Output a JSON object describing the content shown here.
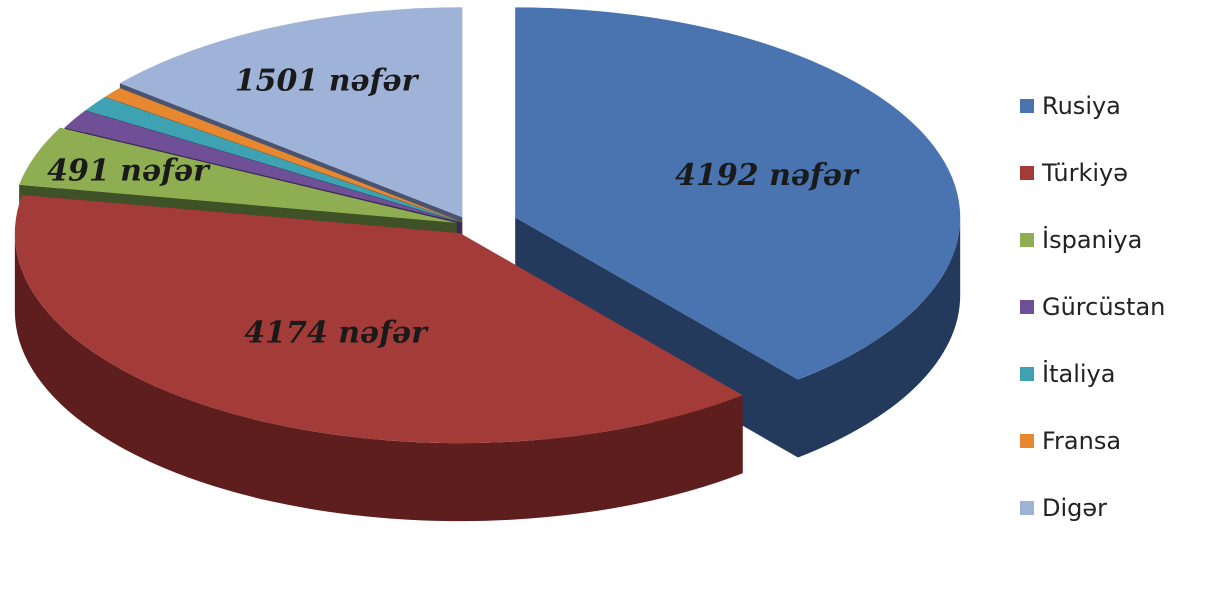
{
  "chart_data": {
    "type": "pie",
    "title": "",
    "legend_position": "right",
    "series": [
      {
        "name": "Rusiya",
        "value": 4192,
        "color": "#4a74b0",
        "side_color": "#243a5c",
        "label": "4192 nəfər"
      },
      {
        "name": "Türkiyə",
        "value": 4174,
        "color": "#a33b39",
        "side_color": "#5e1e1d",
        "label": "4174 nəfər"
      },
      {
        "name": "İspaniya",
        "value": 491,
        "color": "#8fae52",
        "side_color": "#3f5227",
        "label": "491 nəfər"
      },
      {
        "name": "Gürcüstan",
        "value": 160,
        "color": "#6f4f96",
        "side_color": "#3a2852",
        "label": ""
      },
      {
        "name": "İtaliya",
        "value": 130,
        "color": "#3fa2b3",
        "side_color": "#1f5560",
        "label": ""
      },
      {
        "name": "Fransa",
        "value": 90,
        "color": "#e7872f",
        "side_color": "#7a4519",
        "label": ""
      },
      {
        "name": "Digər",
        "value": 1501,
        "color": "#9fb3d8",
        "side_color": "#4a5470",
        "label": "1501 nəfər"
      }
    ]
  }
}
